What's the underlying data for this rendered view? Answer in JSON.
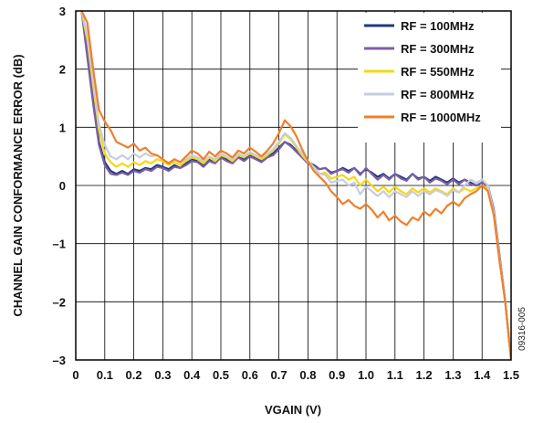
{
  "figure_id": "09316-005",
  "chart_data": {
    "type": "line",
    "xlabel": "VGAIN (V)",
    "ylabel": "CHANNEL GAIN CONFORMANCE ERROR (dB)",
    "xlim": [
      0,
      1.5
    ],
    "ylim": [
      -3,
      3
    ],
    "x_ticks": [
      "0",
      "0.1",
      "0.2",
      "0.3",
      "0.4",
      "0.5",
      "0.6",
      "0.7",
      "0.8",
      "0.9",
      "1.0",
      "1.1",
      "1.2",
      "1.3",
      "1.4",
      "1.5"
    ],
    "y_ticks": [
      "3",
      "2",
      "1",
      "0",
      "–1",
      "–2",
      "–3"
    ],
    "grid": true,
    "legend_position": "top-right",
    "x": [
      0.02,
      0.04,
      0.06,
      0.08,
      0.1,
      0.12,
      0.14,
      0.16,
      0.18,
      0.2,
      0.22,
      0.24,
      0.26,
      0.28,
      0.3,
      0.32,
      0.34,
      0.36,
      0.38,
      0.4,
      0.42,
      0.44,
      0.46,
      0.48,
      0.5,
      0.52,
      0.54,
      0.56,
      0.58,
      0.6,
      0.62,
      0.64,
      0.66,
      0.68,
      0.7,
      0.72,
      0.74,
      0.76,
      0.78,
      0.8,
      0.82,
      0.84,
      0.86,
      0.88,
      0.9,
      0.92,
      0.94,
      0.96,
      0.98,
      1.0,
      1.02,
      1.04,
      1.06,
      1.08,
      1.1,
      1.12,
      1.14,
      1.16,
      1.18,
      1.2,
      1.22,
      1.24,
      1.26,
      1.28,
      1.3,
      1.32,
      1.34,
      1.36,
      1.38,
      1.4,
      1.42,
      1.44,
      1.46,
      1.48,
      1.5
    ],
    "series": [
      {
        "name": "RF = 100MHz",
        "color": "#1f3a7a",
        "values": [
          3.0,
          2.3,
          1.5,
          0.75,
          0.4,
          0.25,
          0.2,
          0.25,
          0.2,
          0.28,
          0.25,
          0.3,
          0.28,
          0.35,
          0.32,
          0.28,
          0.35,
          0.3,
          0.38,
          0.45,
          0.42,
          0.35,
          0.45,
          0.4,
          0.5,
          0.45,
          0.4,
          0.5,
          0.45,
          0.52,
          0.48,
          0.42,
          0.5,
          0.55,
          0.65,
          0.75,
          0.7,
          0.6,
          0.5,
          0.4,
          0.35,
          0.28,
          0.3,
          0.22,
          0.25,
          0.3,
          0.25,
          0.3,
          0.2,
          0.28,
          0.22,
          0.15,
          0.2,
          0.12,
          0.2,
          0.15,
          0.1,
          0.2,
          0.12,
          0.15,
          0.08,
          0.15,
          0.1,
          0.05,
          0.12,
          0.05,
          0.1,
          0.05,
          0.0,
          0.05,
          0.0,
          -0.4,
          -1.2,
          -2.0,
          -3.0
        ]
      },
      {
        "name": "RF = 300MHz",
        "color": "#7b5ea7",
        "values": [
          3.0,
          2.2,
          1.4,
          0.7,
          0.35,
          0.2,
          0.18,
          0.22,
          0.18,
          0.25,
          0.22,
          0.28,
          0.25,
          0.32,
          0.3,
          0.25,
          0.32,
          0.3,
          0.35,
          0.42,
          0.4,
          0.32,
          0.42,
          0.38,
          0.48,
          0.42,
          0.38,
          0.48,
          0.42,
          0.5,
          0.45,
          0.4,
          0.48,
          0.52,
          0.62,
          0.75,
          0.68,
          0.58,
          0.48,
          0.38,
          0.32,
          0.28,
          0.3,
          0.2,
          0.25,
          0.28,
          0.22,
          0.3,
          0.18,
          0.3,
          0.2,
          0.1,
          0.18,
          0.1,
          0.2,
          0.12,
          0.08,
          0.2,
          0.1,
          0.15,
          0.05,
          0.12,
          0.08,
          0.02,
          0.1,
          0.02,
          0.1,
          0.02,
          0.0,
          0.05,
          0.0,
          -0.4,
          -1.2,
          -2.0,
          -3.0
        ]
      },
      {
        "name": "RF = 550MHz",
        "color": "#f5d815",
        "values": [
          3.0,
          2.5,
          1.7,
          0.95,
          0.55,
          0.4,
          0.32,
          0.38,
          0.32,
          0.4,
          0.35,
          0.42,
          0.38,
          0.45,
          0.42,
          0.35,
          0.4,
          0.35,
          0.42,
          0.48,
          0.45,
          0.38,
          0.48,
          0.42,
          0.52,
          0.48,
          0.42,
          0.52,
          0.48,
          0.55,
          0.5,
          0.45,
          0.52,
          0.6,
          0.72,
          0.88,
          0.8,
          0.65,
          0.52,
          0.4,
          0.3,
          0.2,
          0.22,
          0.12,
          0.15,
          0.18,
          0.1,
          0.15,
          0.0,
          0.1,
          0.0,
          -0.1,
          -0.02,
          -0.12,
          -0.02,
          -0.1,
          -0.15,
          -0.05,
          -0.12,
          -0.05,
          -0.12,
          -0.05,
          -0.1,
          -0.15,
          -0.05,
          -0.12,
          -0.05,
          -0.1,
          -0.05,
          0.0,
          -0.05,
          -0.45,
          -1.25,
          -2.0,
          -3.0
        ]
      },
      {
        "name": "RF = 800MHz",
        "color": "#c6cde0",
        "values": [
          3.0,
          2.6,
          1.8,
          1.05,
          0.7,
          0.5,
          0.45,
          0.52,
          0.45,
          0.55,
          0.48,
          0.55,
          0.5,
          0.52,
          0.45,
          0.38,
          0.45,
          0.4,
          0.45,
          0.52,
          0.48,
          0.42,
          0.5,
          0.45,
          0.55,
          0.5,
          0.45,
          0.55,
          0.5,
          0.58,
          0.52,
          0.48,
          0.55,
          0.62,
          0.75,
          0.9,
          0.82,
          0.68,
          0.55,
          0.42,
          0.32,
          0.2,
          0.18,
          0.05,
          0.08,
          0.1,
          0.0,
          0.05,
          -0.15,
          -0.02,
          -0.1,
          -0.18,
          -0.1,
          -0.2,
          -0.1,
          -0.15,
          -0.2,
          -0.1,
          -0.18,
          -0.1,
          -0.15,
          -0.08,
          -0.12,
          -0.18,
          -0.08,
          -0.12,
          0.0,
          0.1,
          0.05,
          0.1,
          0.0,
          -0.45,
          -1.25,
          -2.0,
          -3.0
        ]
      },
      {
        "name": "RF = 1000MHz",
        "color": "#f07f2a",
        "values": [
          3.0,
          2.8,
          2.0,
          1.3,
          1.1,
          0.95,
          0.75,
          0.7,
          0.65,
          0.72,
          0.6,
          0.65,
          0.55,
          0.52,
          0.45,
          0.38,
          0.45,
          0.4,
          0.5,
          0.6,
          0.55,
          0.45,
          0.58,
          0.5,
          0.6,
          0.55,
          0.48,
          0.6,
          0.55,
          0.65,
          0.58,
          0.5,
          0.6,
          0.72,
          0.9,
          1.12,
          1.02,
          0.85,
          0.62,
          0.42,
          0.25,
          0.15,
          0.05,
          -0.1,
          -0.2,
          -0.32,
          -0.25,
          -0.35,
          -0.4,
          -0.32,
          -0.42,
          -0.55,
          -0.45,
          -0.6,
          -0.52,
          -0.62,
          -0.68,
          -0.55,
          -0.6,
          -0.45,
          -0.52,
          -0.4,
          -0.48,
          -0.35,
          -0.28,
          -0.35,
          -0.22,
          -0.15,
          -0.1,
          0.0,
          -0.1,
          -0.5,
          -1.3,
          -2.0,
          -3.0
        ]
      }
    ]
  }
}
